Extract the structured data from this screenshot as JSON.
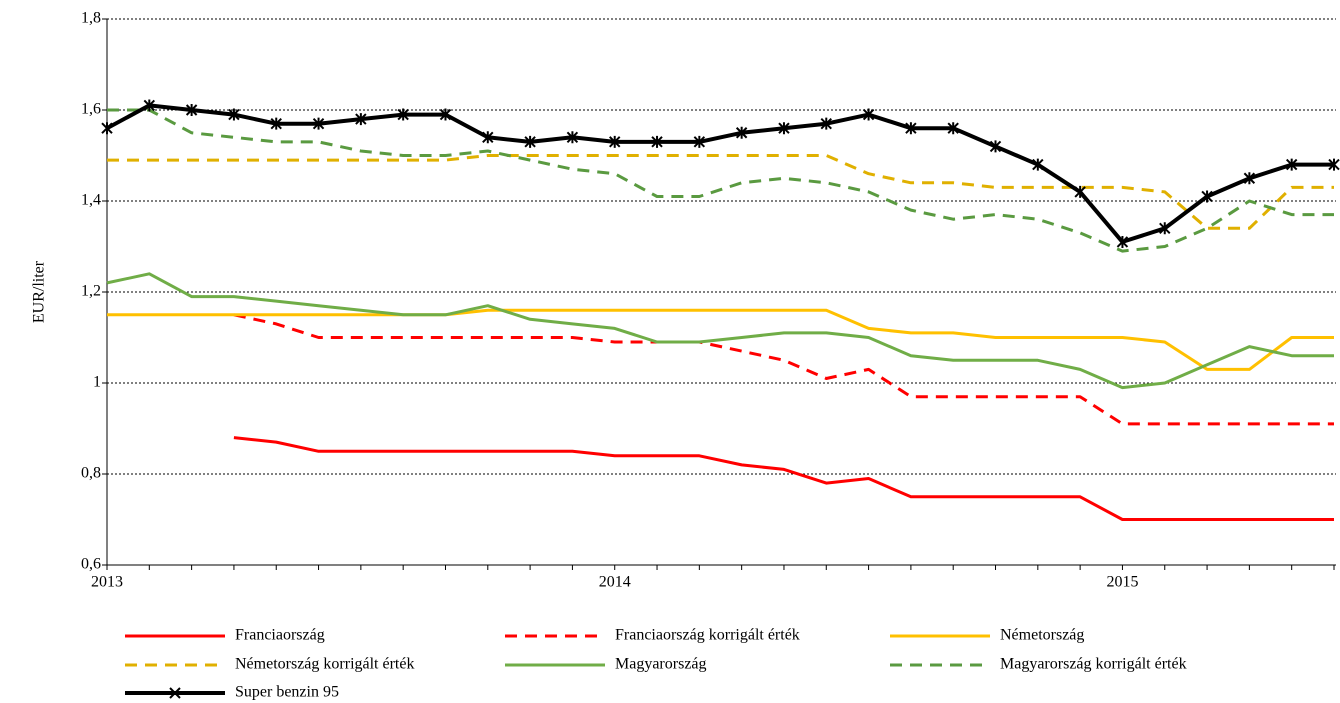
{
  "chart_data": {
    "type": "line",
    "ylabel": "EUR/liter",
    "categories": [
      "2013",
      null,
      null,
      null,
      null,
      null,
      null,
      null,
      null,
      null,
      null,
      null,
      "2014",
      null,
      null,
      null,
      null,
      null,
      null,
      null,
      null,
      null,
      null,
      null,
      "2015",
      null,
      null,
      null,
      null,
      null
    ],
    "ylim": [
      0.6,
      1.8
    ],
    "yticks": [
      {
        "value": 0.6,
        "label": "0,6"
      },
      {
        "value": 0.8,
        "label": "0,8"
      },
      1,
      {
        "value": 1.2,
        "label": "1,2"
      },
      {
        "value": 1.4,
        "label": "1,4"
      },
      {
        "value": 1.6,
        "label": "1,6"
      },
      {
        "value": 1.8,
        "label": "1,8"
      }
    ],
    "grid": true,
    "legend": "bottom",
    "series": [
      {
        "name": "Franciaország",
        "color": "#ff0000",
        "dash": false,
        "values": [
          null,
          null,
          null,
          0.88,
          0.87,
          0.85,
          0.85,
          0.85,
          0.85,
          0.85,
          0.85,
          0.85,
          0.84,
          0.84,
          0.84,
          0.82,
          0.81,
          0.78,
          0.79,
          0.75,
          0.75,
          0.75,
          0.75,
          0.75,
          0.7,
          0.7,
          0.7,
          0.7,
          0.7,
          0.7
        ]
      },
      {
        "name": "Franciaország korrigált érték",
        "color": "#ff0000",
        "dash": true,
        "values": [
          null,
          null,
          null,
          1.15,
          1.13,
          1.1,
          1.1,
          1.1,
          1.1,
          1.1,
          1.1,
          1.1,
          1.09,
          1.09,
          1.09,
          1.07,
          1.05,
          1.01,
          1.03,
          0.97,
          0.97,
          0.97,
          0.97,
          0.97,
          0.91,
          0.91,
          0.91,
          0.91,
          0.91,
          0.91
        ]
      },
      {
        "name": "Németország",
        "color": "#ffc000",
        "dash": false,
        "values": [
          1.15,
          1.15,
          1.15,
          1.15,
          1.15,
          1.15,
          1.15,
          1.15,
          1.15,
          1.16,
          1.16,
          1.16,
          1.16,
          1.16,
          1.16,
          1.16,
          1.16,
          1.16,
          1.12,
          1.11,
          1.11,
          1.1,
          1.1,
          1.1,
          1.1,
          1.09,
          1.03,
          1.03,
          1.1,
          1.1
        ]
      },
      {
        "name": "Németország korrigált érték",
        "color": "#e0b000",
        "dash": true,
        "values": [
          1.49,
          1.49,
          1.49,
          1.49,
          1.49,
          1.49,
          1.49,
          1.49,
          1.49,
          1.5,
          1.5,
          1.5,
          1.5,
          1.5,
          1.5,
          1.5,
          1.5,
          1.5,
          1.46,
          1.44,
          1.44,
          1.43,
          1.43,
          1.43,
          1.43,
          1.42,
          1.34,
          1.34,
          1.43,
          1.43
        ]
      },
      {
        "name": "Magyarország",
        "color": "#70ad47",
        "dash": false,
        "values": [
          1.22,
          1.24,
          1.19,
          1.19,
          1.18,
          1.17,
          1.16,
          1.15,
          1.15,
          1.17,
          1.14,
          1.13,
          1.12,
          1.09,
          1.09,
          1.1,
          1.11,
          1.11,
          1.1,
          1.06,
          1.05,
          1.05,
          1.05,
          1.03,
          0.99,
          1.0,
          1.04,
          1.08,
          1.06,
          1.06
        ]
      },
      {
        "name": "Magyarország korrigált érték",
        "color": "#5a9a40",
        "dash": true,
        "values": [
          1.6,
          1.6,
          1.55,
          1.54,
          1.53,
          1.53,
          1.51,
          1.5,
          1.5,
          1.51,
          1.49,
          1.47,
          1.46,
          1.41,
          1.41,
          1.44,
          1.45,
          1.44,
          1.42,
          1.38,
          1.36,
          1.37,
          1.36,
          1.33,
          1.29,
          1.3,
          1.34,
          1.4,
          1.37,
          1.37
        ]
      },
      {
        "name": "Super benzin 95",
        "color": "#000000",
        "dash": false,
        "markers": true,
        "values": [
          1.56,
          1.61,
          1.6,
          1.59,
          1.57,
          1.57,
          1.58,
          1.59,
          1.59,
          1.54,
          1.53,
          1.54,
          1.53,
          1.53,
          1.53,
          1.55,
          1.56,
          1.57,
          1.59,
          1.56,
          1.56,
          1.52,
          1.48,
          1.42,
          1.31,
          1.34,
          1.41,
          1.45,
          1.48,
          1.48
        ]
      }
    ]
  }
}
